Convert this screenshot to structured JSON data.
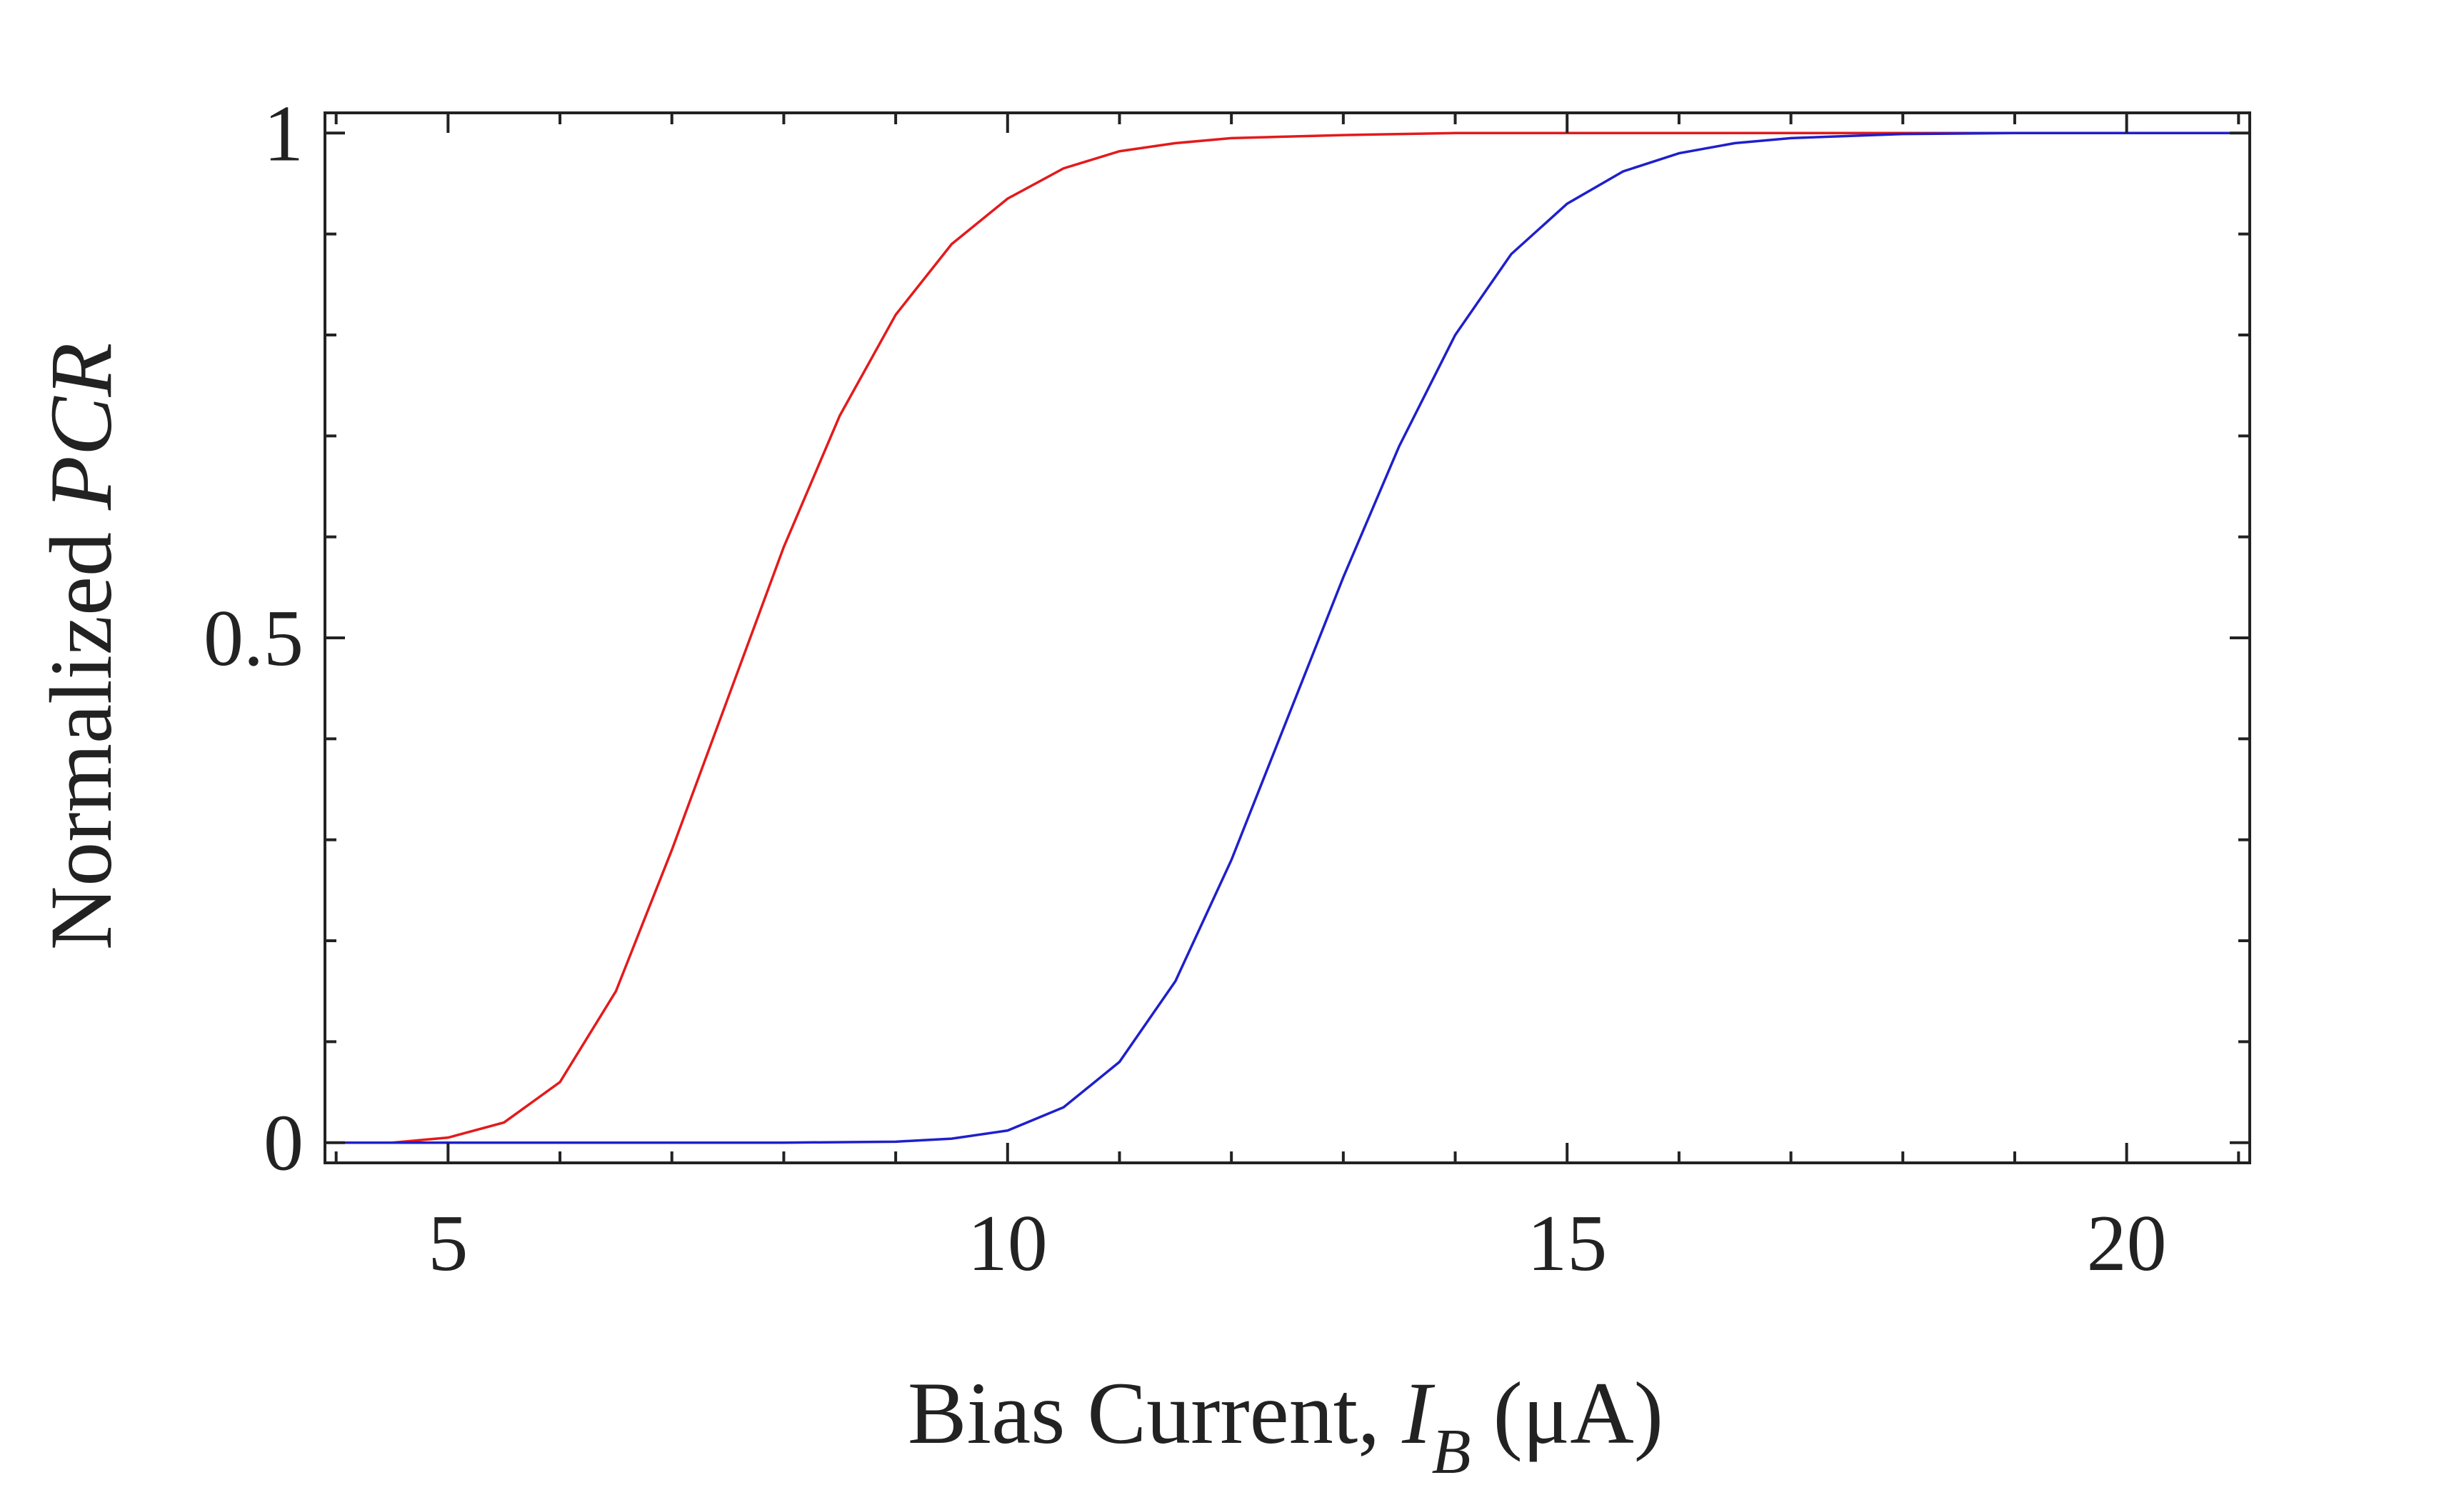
{
  "chart_data": {
    "type": "line",
    "title": "",
    "xlabel": {
      "text": "Bias Current, ",
      "var": "I",
      "sub": "B",
      "unit": " (μA)"
    },
    "ylabel": {
      "text": "Normalized ",
      "var": "PCR"
    },
    "xlim": [
      3.9,
      21.1
    ],
    "ylim": [
      -0.02,
      1.02
    ],
    "x_major_ticks": [
      5,
      10,
      15,
      20
    ],
    "x_minor_ticks": [
      4,
      6,
      7,
      8,
      9,
      11,
      12,
      13,
      14,
      16,
      17,
      18,
      19,
      21
    ],
    "x_tick_labels": [
      "5",
      "10",
      "15",
      "20"
    ],
    "y_major_ticks": [
      0,
      0.5,
      1
    ],
    "y_minor_ticks": [
      0.1,
      0.2,
      0.3,
      0.4,
      0.6,
      0.7,
      0.8,
      0.9
    ],
    "y_tick_labels": [
      "0",
      "0.5",
      "1"
    ],
    "grid": false,
    "legend": "none",
    "series": [
      {
        "color": "#e31a1c",
        "x": [
          3.9,
          4.5,
          5.0,
          5.5,
          6.0,
          6.5,
          7.0,
          7.5,
          8.0,
          8.5,
          9.0,
          9.5,
          10.0,
          10.5,
          11.0,
          11.5,
          12.0,
          13.0,
          14.0,
          15.0,
          16.0,
          17.0,
          18.0,
          19.0,
          20.0,
          21.1
        ],
        "y": [
          0.0,
          0.0,
          0.005,
          0.02,
          0.06,
          0.15,
          0.29,
          0.44,
          0.59,
          0.72,
          0.82,
          0.89,
          0.935,
          0.965,
          0.982,
          0.99,
          0.995,
          0.998,
          1.0,
          1.0,
          1.0,
          1.0,
          1.0,
          1.0,
          1.0,
          1.0
        ]
      },
      {
        "color": "#1f1fcc",
        "x": [
          3.9,
          6.0,
          8.0,
          9.0,
          9.5,
          10.0,
          10.5,
          11.0,
          11.5,
          12.0,
          12.5,
          13.0,
          13.5,
          14.0,
          14.5,
          15.0,
          15.5,
          16.0,
          16.5,
          17.0,
          18.0,
          19.0,
          20.0,
          21.1
        ],
        "y": [
          0.0,
          0.0,
          0.0,
          0.001,
          0.004,
          0.012,
          0.035,
          0.08,
          0.16,
          0.28,
          0.42,
          0.56,
          0.69,
          0.8,
          0.88,
          0.93,
          0.962,
          0.98,
          0.99,
          0.995,
          0.999,
          1.0,
          1.0,
          1.0
        ]
      }
    ]
  }
}
